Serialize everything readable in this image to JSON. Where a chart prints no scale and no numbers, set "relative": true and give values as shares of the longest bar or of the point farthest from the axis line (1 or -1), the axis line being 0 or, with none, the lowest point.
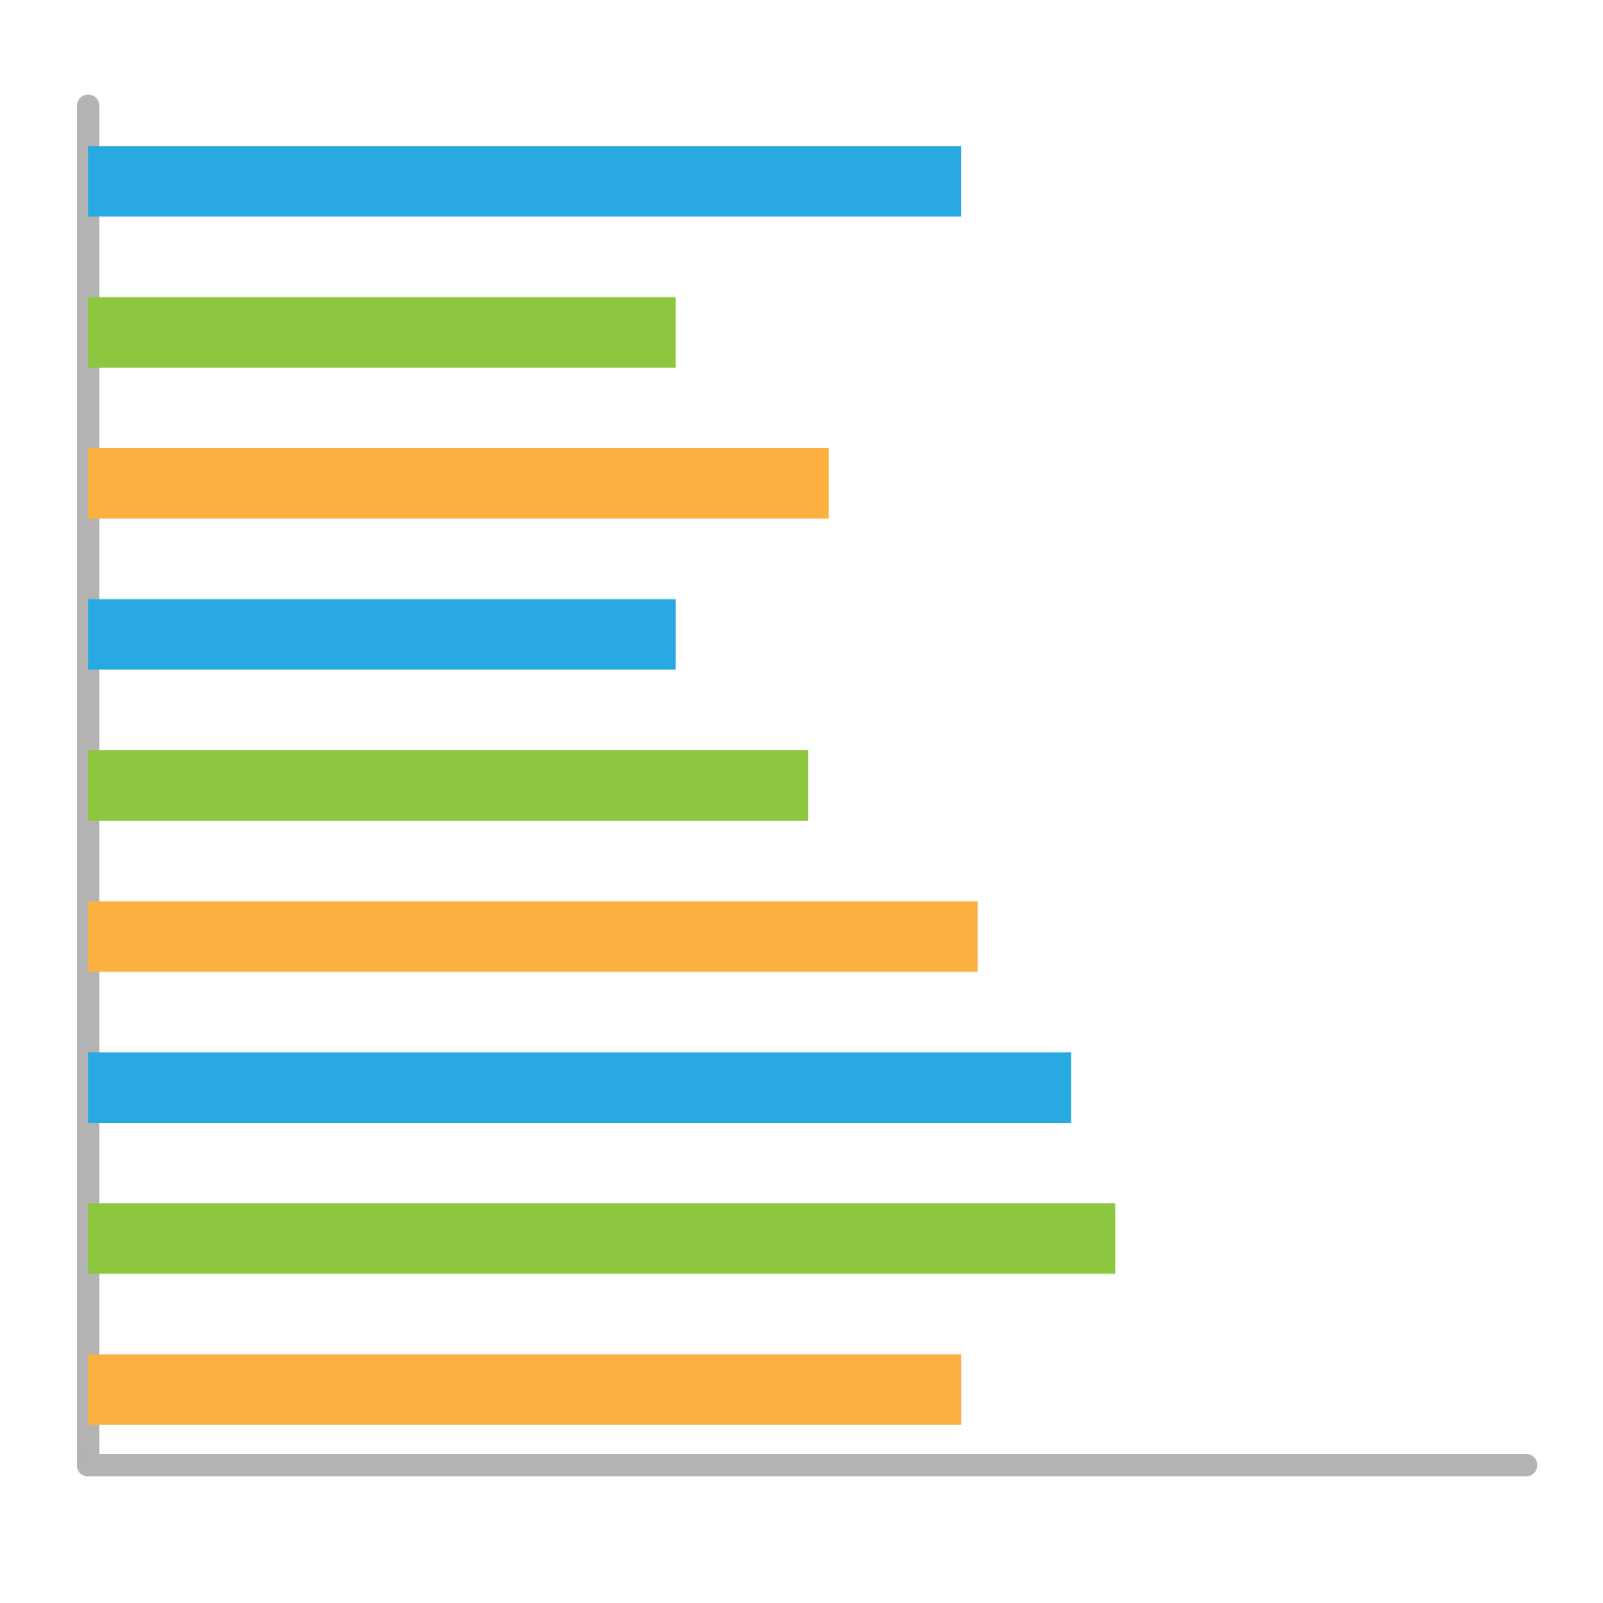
{
  "chart_data": {
    "type": "bar",
    "orientation": "horizontal",
    "relative": true,
    "categories": [
      null,
      null,
      null,
      null,
      null,
      null,
      null,
      null,
      null
    ],
    "values": [
      0.85,
      0.572,
      0.721,
      0.572,
      0.701,
      0.866,
      0.957,
      1,
      0.85
    ],
    "colors": [
      "#29a9e1",
      "#8dc63f",
      "#fbb040",
      "#29a9e1",
      "#8dc63f",
      "#fbb040",
      "#29a9e1",
      "#8dc63f",
      "#fbb040"
    ]
  }
}
